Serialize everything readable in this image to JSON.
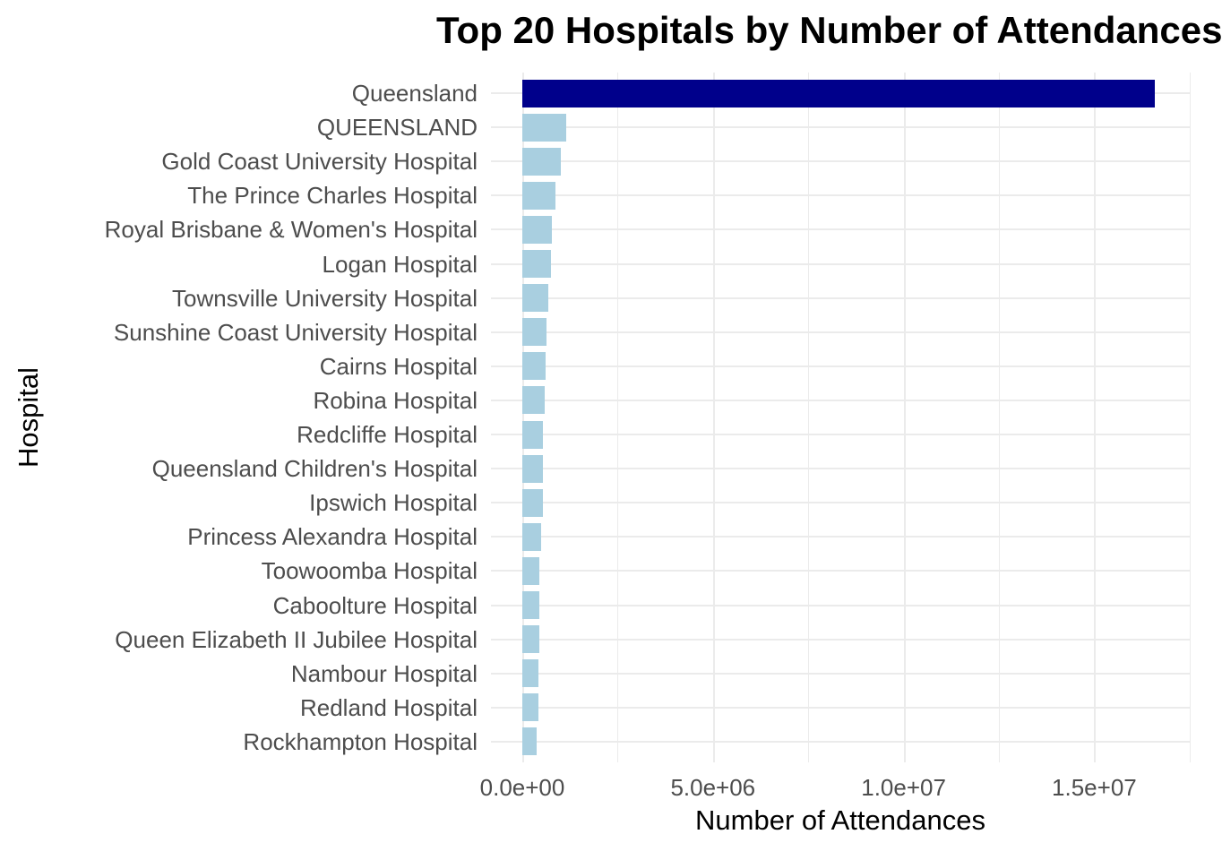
{
  "chart_data": {
    "type": "bar",
    "orientation": "horizontal",
    "title": "Top 20 Hospitals by Number of Attendances",
    "xlabel": "Number of Attendances",
    "ylabel": "Hospital",
    "categories": [
      "Queensland",
      "QUEENSLAND",
      "Gold Coast University Hospital",
      "The Prince Charles Hospital",
      "Royal Brisbane & Women's Hospital",
      "Logan Hospital",
      "Townsville University Hospital",
      "Sunshine Coast University Hospital",
      "Cairns Hospital",
      "Robina Hospital",
      "Redcliffe Hospital",
      "Queensland Children's Hospital",
      "Ipswich Hospital",
      "Princess Alexandra Hospital",
      "Toowoomba Hospital",
      "Caboolture Hospital",
      "Queen Elizabeth II Jubilee Hospital",
      "Nambour Hospital",
      "Redland Hospital",
      "Rockhampton Hospital"
    ],
    "values": [
      16600000,
      1150000,
      1010000,
      870000,
      780000,
      750000,
      680000,
      635000,
      610000,
      590000,
      545000,
      540000,
      535000,
      490000,
      445000,
      440000,
      435000,
      425000,
      420000,
      375000
    ],
    "x_ticks": [
      {
        "label": "0.0e+00",
        "value": 0
      },
      {
        "label": "5.0e+06",
        "value": 5000000
      },
      {
        "label": "1.0e+07",
        "value": 10000000
      },
      {
        "label": "1.5e+07",
        "value": 15000000
      }
    ],
    "x_minor_ticks": [
      2500000,
      7500000,
      12500000,
      17500000
    ],
    "xlim": [
      -830000,
      17450000
    ],
    "grid": true,
    "legend": "none",
    "colors": {
      "bar_highlight": "#00008B",
      "bar_default": "#A9CFE0",
      "gridline": "#EBEBEB",
      "tick_label_color": "#4D4D4D",
      "axis_title_color": "#000000",
      "title_color": "#000000",
      "background": "#FFFFFF"
    },
    "highlight_index": 0
  }
}
